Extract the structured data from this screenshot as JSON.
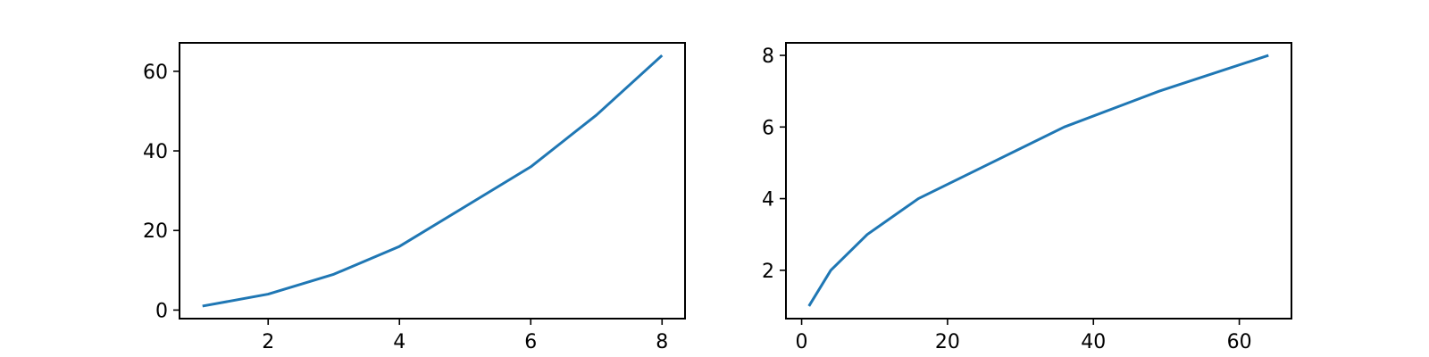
{
  "colors": {
    "series": "#1f77b4",
    "axes": "#000000",
    "background": "#ffffff"
  },
  "chart_data": [
    {
      "type": "line",
      "grid": false,
      "xlim": [
        0.65,
        8.35
      ],
      "ylim": [
        -2.15,
        67.15
      ],
      "xticks": [
        2,
        4,
        6,
        8
      ],
      "yticks": [
        0,
        20,
        40,
        60
      ],
      "xtick_labels": [
        "2",
        "4",
        "6",
        "8"
      ],
      "ytick_labels": [
        "0",
        "20",
        "40",
        "60"
      ],
      "series": [
        {
          "x": [
            1,
            2,
            3,
            4,
            5,
            6,
            7,
            8
          ],
          "y": [
            1,
            4,
            9,
            16,
            26,
            36,
            49,
            64
          ]
        }
      ]
    },
    {
      "type": "line",
      "grid": false,
      "xlim": [
        -2.15,
        67.15
      ],
      "ylim": [
        0.65,
        8.35
      ],
      "xticks": [
        0,
        20,
        40,
        60
      ],
      "yticks": [
        2,
        4,
        6,
        8
      ],
      "xtick_labels": [
        "0",
        "20",
        "40",
        "60"
      ],
      "ytick_labels": [
        "2",
        "4",
        "6",
        "8"
      ],
      "series": [
        {
          "x": [
            1,
            4,
            9,
            16,
            26,
            36,
            49,
            64
          ],
          "y": [
            1,
            2,
            3,
            4,
            5,
            6,
            7,
            8
          ]
        }
      ]
    }
  ]
}
